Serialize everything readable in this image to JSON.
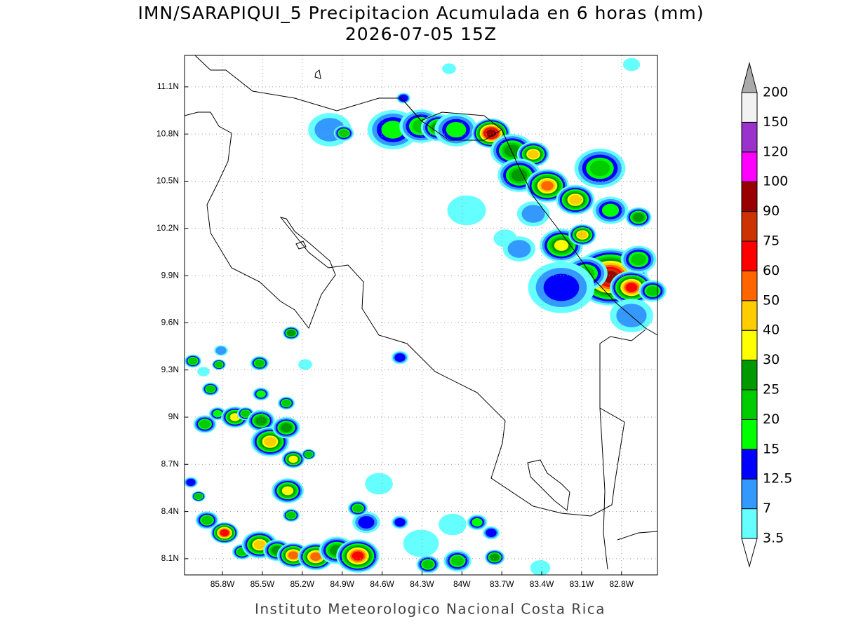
{
  "title": "IMN/SARAPIQUI_5 Precipitacion Acumulada en 6 horas (mm)",
  "subtitle": "2026-07-05 15Z",
  "footer": "Instituto Meteorologico Nacional Costa Rica",
  "map": {
    "lonlim": [
      -86.085,
      -82.53
    ],
    "latlim": [
      7.997,
      11.3
    ],
    "lonticks": [
      {
        "value": -85.8,
        "label": "85.8W"
      },
      {
        "value": -85.5,
        "label": "85.5W"
      },
      {
        "value": -85.2,
        "label": "85.2W"
      },
      {
        "value": -84.9,
        "label": "84.9W"
      },
      {
        "value": -84.6,
        "label": "84.6W"
      },
      {
        "value": -84.3,
        "label": "84.3W"
      },
      {
        "value": -84,
        "label": "84W"
      },
      {
        "value": -83.7,
        "label": "83.7W"
      },
      {
        "value": -83.4,
        "label": "83.4W"
      },
      {
        "value": -83.1,
        "label": "83.1W"
      },
      {
        "value": -82.8,
        "label": "82.8W"
      }
    ],
    "latticks": [
      {
        "value": 8.1,
        "label": "8.1N"
      },
      {
        "value": 8.4,
        "label": "8.4N"
      },
      {
        "value": 8.7,
        "label": "8.7N"
      },
      {
        "value": 9,
        "label": "9N"
      },
      {
        "value": 9.3,
        "label": "9.3N"
      },
      {
        "value": 9.6,
        "label": "9.6N"
      },
      {
        "value": 9.9,
        "label": "9.9N"
      },
      {
        "value": 10.2,
        "label": "10.2N"
      },
      {
        "value": 10.5,
        "label": "10.5N"
      },
      {
        "value": 10.8,
        "label": "10.8N"
      },
      {
        "value": 11.1,
        "label": "11.1N"
      }
    ],
    "grid": true
  },
  "colorbar": {
    "levels": [
      3.5,
      7,
      12.5,
      15,
      20,
      25,
      30,
      40,
      50,
      60,
      75,
      90,
      100,
      120,
      150,
      200
    ],
    "colors": [
      "#66ffff",
      "#3399ff",
      "#0000ff",
      "#00ff00",
      "#00cc00",
      "#009900",
      "#ffff00",
      "#ffcc00",
      "#ff6600",
      "#ff0000",
      "#cc3300",
      "#990000",
      "#ff00ff",
      "#9933cc",
      "#f2f2f2"
    ],
    "under_color": "#ffffff",
    "over_color": "#aaaaaa"
  }
}
